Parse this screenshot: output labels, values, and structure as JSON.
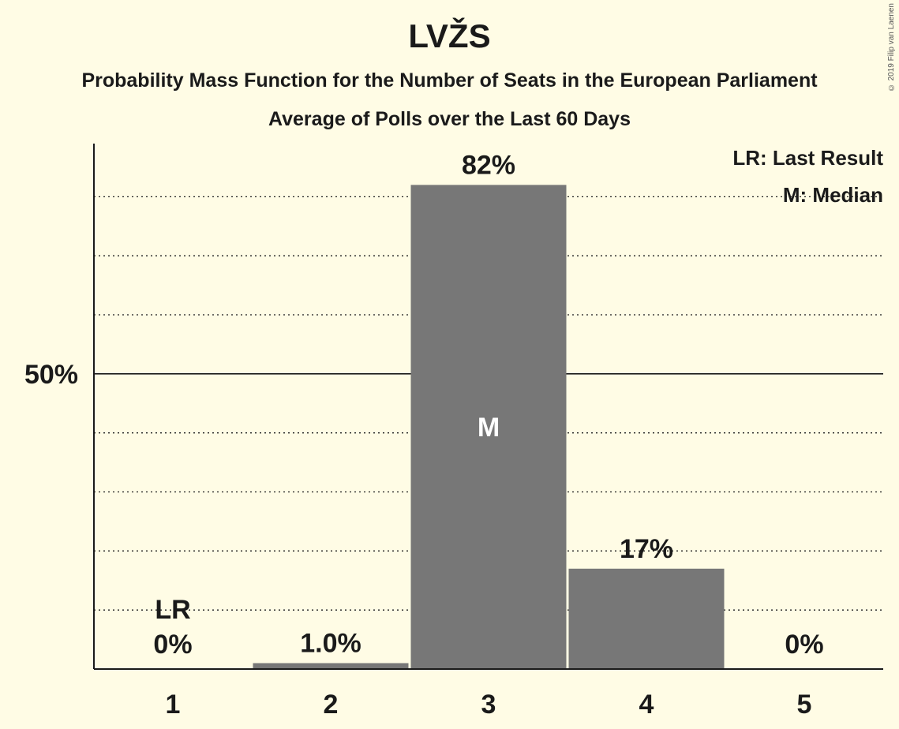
{
  "title": "LVŽS",
  "subtitle1": "Probability Mass Function for the Number of Seats in the European Parliament",
  "subtitle2": "Average of Polls over the Last 60 Days",
  "copyright": "© 2019 Filip van Laenen",
  "legend": {
    "last_result": "LR: Last Result",
    "median": "M: Median"
  },
  "colors": {
    "background": "#FFFCE5",
    "bar": "#777777",
    "text": "#1a1a1a"
  },
  "chart_data": {
    "type": "bar",
    "categories": [
      "1",
      "2",
      "3",
      "4",
      "5"
    ],
    "values": [
      0,
      1.0,
      82,
      17,
      0
    ],
    "value_labels": [
      "0%",
      "1.0%",
      "82%",
      "17%",
      "0%"
    ],
    "ylim": [
      0,
      89
    ],
    "y_ticks": [
      {
        "value": 50,
        "label": "50%"
      }
    ],
    "gridlines": [
      10,
      20,
      30,
      40,
      50,
      60,
      70,
      80
    ],
    "major_gridline": 50,
    "last_result_index": 0,
    "last_result_marker": "LR",
    "median_index": 2,
    "median_marker": "M",
    "legend_position": "top-right"
  }
}
